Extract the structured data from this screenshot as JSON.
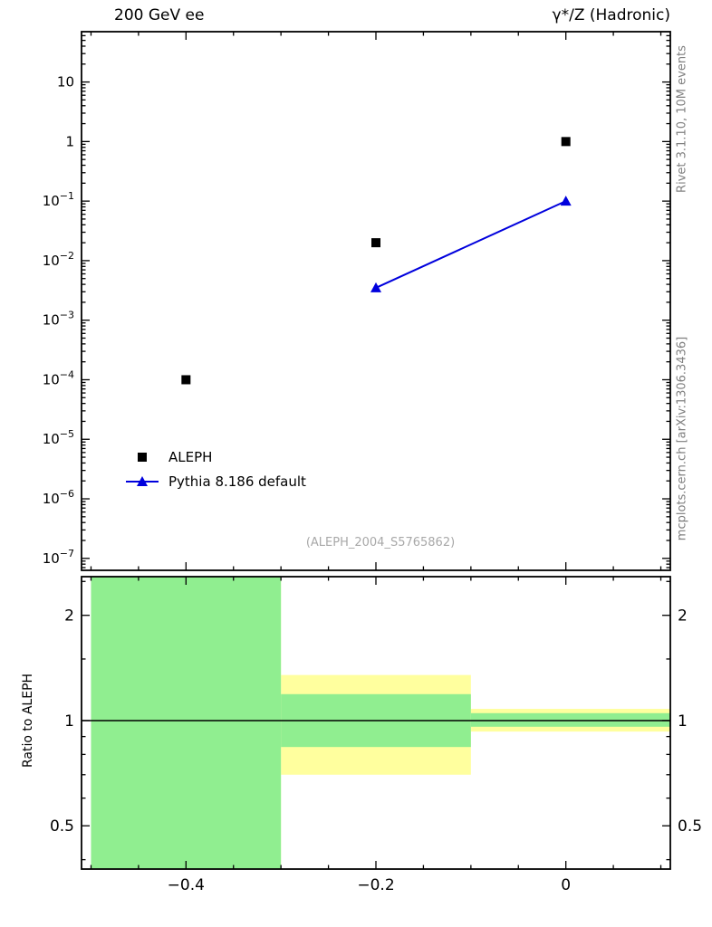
{
  "chart_data": {
    "type": "line",
    "title_left": "200 GeV ee",
    "title_right": "γ*/Z (Hadronic)",
    "watermark": "(ALEPH_2004_S5765862)",
    "right_labels": {
      "rivet": "Rivet 3.1.10,  10M events",
      "mcplots": "mcplots.cern.ch [arXiv:1306.3436]"
    },
    "colors": {
      "data_black": "#000000",
      "pythia_blue": "#0000dd",
      "band_yellow": "#ffff9e",
      "band_green": "#90ee90",
      "frame": "#000000"
    },
    "main_panel": {
      "yscale": "log",
      "ylim": [
        6.3e-08,
        70
      ],
      "xlim": [
        -0.51,
        0.11
      ],
      "series": [
        {
          "name": "ALEPH",
          "marker": "square",
          "color": "#000000",
          "line": false,
          "points": [
            [
              -0.4,
              0.0001
            ],
            [
              -0.2,
              0.02
            ],
            [
              0.0,
              1.0
            ]
          ]
        },
        {
          "name": "Pythia 8.186 default",
          "marker": "triangle",
          "color": "#0000dd",
          "line": true,
          "points": [
            [
              -0.2,
              0.0035
            ],
            [
              0.0,
              0.1
            ]
          ]
        }
      ]
    },
    "ratio_panel": {
      "ylabel": "Ratio to ALEPH",
      "yscale": "log",
      "ylim": [
        0.376,
        2.58
      ],
      "yticks": [
        0.5,
        1,
        2
      ],
      "yticks_minor": [
        0.4,
        0.6,
        0.7,
        0.8,
        0.9,
        1.5,
        2.5
      ],
      "xticks": [
        -0.4,
        -0.2,
        0
      ],
      "x_minor_step": 0.05,
      "reference_line": 1,
      "bands": [
        {
          "x": [
            -0.5,
            -0.3
          ],
          "yellow": [
            0.376,
            2.58
          ],
          "green": [
            0.376,
            2.58
          ]
        },
        {
          "x": [
            -0.3,
            -0.1
          ],
          "yellow": [
            0.7,
            1.35
          ],
          "green": [
            0.84,
            1.19
          ]
        },
        {
          "x": [
            -0.1,
            0.11
          ],
          "yellow": [
            0.93,
            1.08
          ],
          "green": [
            0.96,
            1.05
          ]
        }
      ]
    }
  }
}
